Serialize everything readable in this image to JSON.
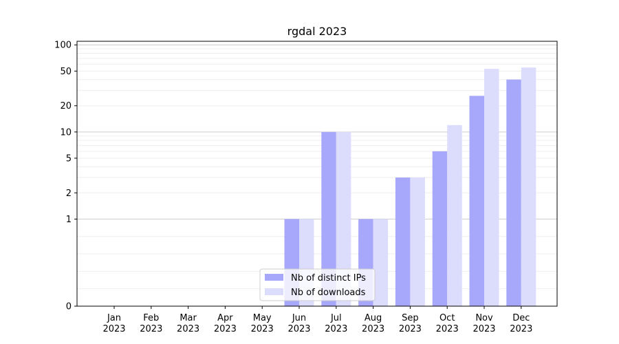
{
  "chart_data": {
    "type": "bar",
    "title": "rgdal 2023",
    "xlabel": "",
    "ylabel": "",
    "categories": [
      {
        "month": "Jan",
        "year": "2023"
      },
      {
        "month": "Feb",
        "year": "2023"
      },
      {
        "month": "Mar",
        "year": "2023"
      },
      {
        "month": "Apr",
        "year": "2023"
      },
      {
        "month": "May",
        "year": "2023"
      },
      {
        "month": "Jun",
        "year": "2023"
      },
      {
        "month": "Jul",
        "year": "2023"
      },
      {
        "month": "Aug",
        "year": "2023"
      },
      {
        "month": "Sep",
        "year": "2023"
      },
      {
        "month": "Oct",
        "year": "2023"
      },
      {
        "month": "Nov",
        "year": "2023"
      },
      {
        "month": "Dec",
        "year": "2023"
      }
    ],
    "series": [
      {
        "name": "Nb of distinct IPs",
        "color": "#a7a7fb",
        "values": [
          0,
          0,
          0,
          0,
          0,
          1,
          10,
          1,
          3,
          6,
          26,
          40
        ]
      },
      {
        "name": "Nb of downloads",
        "color": "#dcdcfd",
        "values": [
          0,
          0,
          0,
          0,
          0,
          1,
          10,
          1,
          3,
          12,
          53,
          55
        ]
      }
    ],
    "y_scale": "symlog",
    "yticks": [
      "0",
      "1",
      "2",
      "5",
      "10",
      "20",
      "50",
      "100"
    ],
    "ytick_values": [
      0,
      1,
      2,
      5,
      10,
      20,
      50,
      100
    ],
    "ylim": [
      0,
      110
    ],
    "grid": true,
    "legend_position": "bottom-center"
  }
}
